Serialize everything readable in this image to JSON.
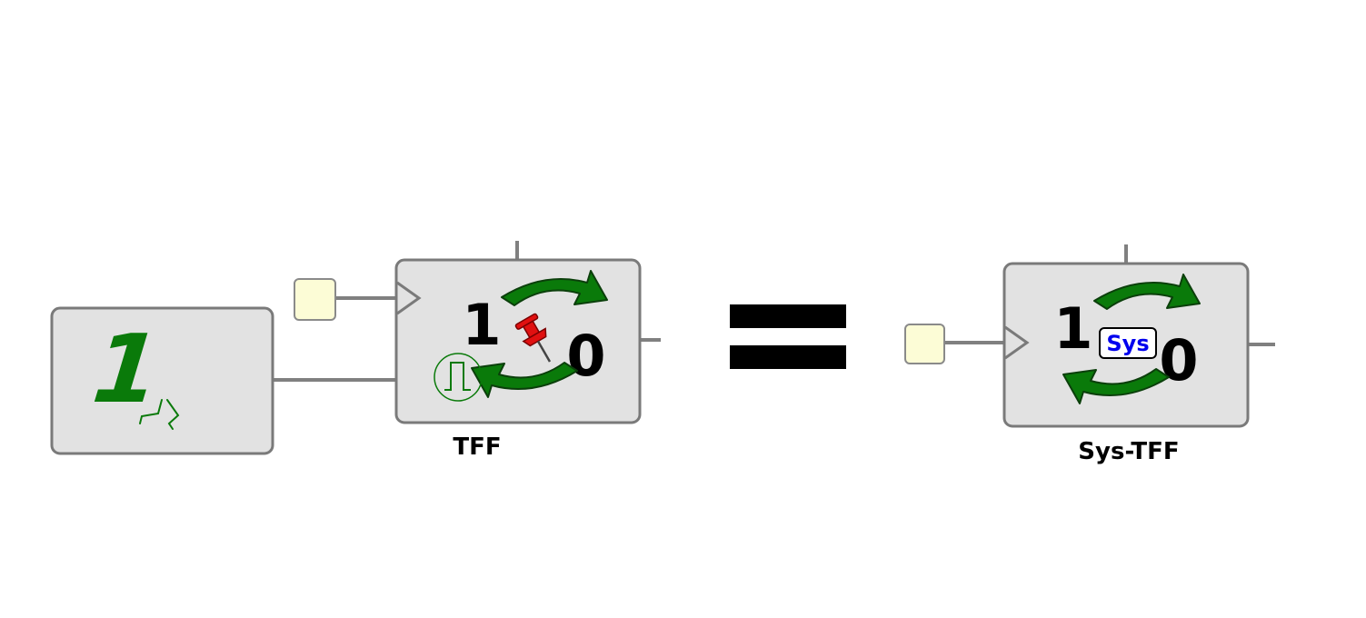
{
  "const_block": {
    "value": "1"
  },
  "tff_block": {
    "one": "1",
    "zero": "0",
    "label": "TFF"
  },
  "equals": {
    "icon": "equals-icon"
  },
  "sys_tff_block": {
    "one": "1",
    "zero": "0",
    "badge": "Sys",
    "label": "Sys-TFF"
  },
  "colors": {
    "block_fill": "#e2e2e2",
    "block_stroke": "#7a7a7a",
    "wire": "#808080",
    "port": "#fcfcd6",
    "arrow_green": "#0a7a0a",
    "pin_red": "#e01010",
    "sys_text": "#0000ee"
  }
}
